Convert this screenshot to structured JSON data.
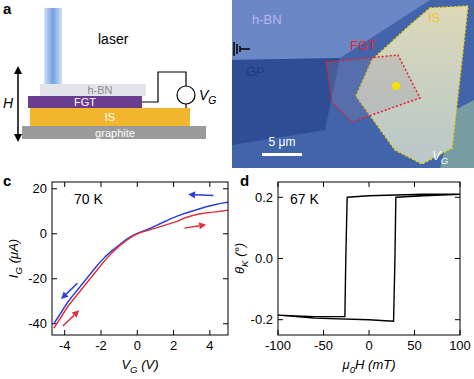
{
  "panel_labels": [
    "a",
    "b",
    "c",
    "d"
  ],
  "schematic": {
    "laser": "laser",
    "layers": [
      "h-BN",
      "FGT",
      "IS",
      "graphite"
    ],
    "height": "H",
    "voltage": {
      "text": "V",
      "sub": "G"
    }
  },
  "micrograph": {
    "labels": [
      "h-BN",
      "IS",
      "FGT",
      "GP"
    ],
    "scale_bar": "5 μm",
    "voltage": {
      "text": "V",
      "sub": "G"
    }
  },
  "chart_data": [
    {
      "type": "line",
      "annotation": "70 K",
      "xlabel": {
        "text": "V",
        "sub": "G",
        "unit": " (V)"
      },
      "ylabel": {
        "text": "I",
        "sub": "G",
        "unit": " (μA)"
      },
      "xlim": [
        -4.7,
        5
      ],
      "xticks": [
        -4,
        -2,
        0,
        2,
        4
      ],
      "ylim": [
        -45,
        23
      ],
      "yticks": [
        -40,
        -20,
        0,
        20
      ],
      "grid": false,
      "x": [
        -4.6,
        -4.2,
        -3.8,
        -3.4,
        -3,
        -2.6,
        -2.2,
        -1.8,
        -1.4,
        -1,
        -0.6,
        -0.2,
        0.2,
        0.6,
        1,
        1.4,
        1.8,
        2.2,
        2.6,
        3,
        3.4,
        3.8,
        4.2,
        4.6,
        5
      ],
      "series": [
        {
          "color": "#2b3fd6",
          "values": [
            -40,
            -35,
            -30,
            -26,
            -22,
            -18,
            -14,
            -10.5,
            -7.5,
            -5,
            -2.5,
            -0.5,
            0.8,
            2,
            3.5,
            5,
            6.5,
            7.8,
            9,
            10,
            11,
            12,
            12.8,
            13.5,
            14
          ]
        },
        {
          "color": "#e0303a",
          "values": [
            -42,
            -37,
            -32,
            -28,
            -24,
            -20,
            -16,
            -12,
            -8.5,
            -5.5,
            -3,
            -0.8,
            0.6,
            1.5,
            2.5,
            3.5,
            4.5,
            5.5,
            7,
            8,
            8.8,
            9.3,
            9.6,
            10,
            10.5
          ]
        }
      ],
      "arrows": [
        {
          "color": "#2b3fd6",
          "x": [
            4.2,
            2.8
          ],
          "y": [
            17,
            17.5
          ]
        },
        {
          "color": "#2b3fd6",
          "x": [
            -3.3,
            -4.2
          ],
          "y": [
            -22,
            -29
          ]
        },
        {
          "color": "#e0303a",
          "x": [
            2.6,
            3.8
          ],
          "y": [
            2.5,
            4
          ]
        },
        {
          "color": "#e0303a",
          "x": [
            -4.1,
            -3.2
          ],
          "y": [
            -41,
            -34
          ]
        }
      ]
    },
    {
      "type": "line",
      "annotation": "67 K",
      "xlabel": {
        "text": "μ",
        "sub": "0",
        "unit": "H (mT)"
      },
      "ylabel": {
        "text": "θ",
        "sub": "K",
        "unit": " (°)"
      },
      "xlim": [
        -100,
        100
      ],
      "xticks": [
        -100,
        -50,
        0,
        50,
        100
      ],
      "ylim": [
        -0.25,
        0.25
      ],
      "yticks": [
        -0.2,
        {
          "value": 0,
          "label": "0.0"
        },
        0.2
      ],
      "grid": false,
      "x": [
        100,
        60,
        0,
        -24,
        -25.5,
        -26.5,
        -60,
        -100,
        -60,
        0,
        27,
        28.5,
        29.5,
        60,
        100
      ],
      "series": [
        {
          "color": "#000000",
          "values": [
            0.21,
            0.21,
            0.205,
            0.2,
            0,
            -0.19,
            -0.19,
            -0.185,
            -0.195,
            -0.2,
            -0.205,
            0,
            0.2,
            0.205,
            0.21
          ]
        }
      ]
    }
  ]
}
